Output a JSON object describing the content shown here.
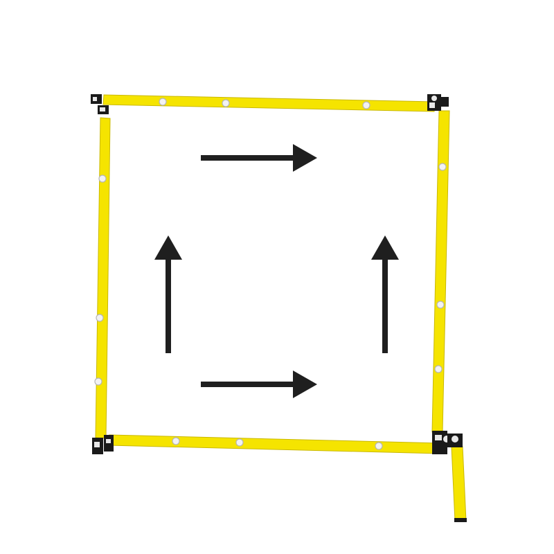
{
  "diagram": {
    "description_visible_text": "",
    "colors": {
      "background": "#ffffff",
      "bar_fill": "#f5e400",
      "bar_edge": "#c9b800",
      "arrow": "#1f1f1f",
      "bolt": "#f2f2f2",
      "bolt_edge": "#b5b5b5",
      "connector": "#1a1a1a",
      "connector_light": "#e8e8e8"
    },
    "elements": {
      "frame": "yellow-rod-square-frame",
      "corner_joints": [
        "top-left-joint",
        "top-right-joint",
        "bottom-left-joint",
        "bottom-right-joint"
      ],
      "arrows": [
        {
          "name": "arrow-top-right",
          "direction": "right"
        },
        {
          "name": "arrow-bottom-right",
          "direction": "right"
        },
        {
          "name": "arrow-left-up",
          "direction": "up"
        },
        {
          "name": "arrow-right-up",
          "direction": "up"
        }
      ]
    }
  }
}
